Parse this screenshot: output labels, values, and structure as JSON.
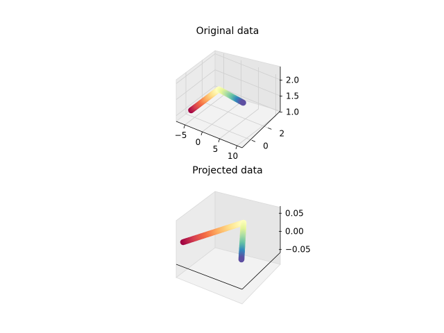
{
  "chart_data": [
    {
      "type": "scatter",
      "projection": "3d",
      "title": "Original data",
      "xlabel": "",
      "ylabel": "",
      "zlabel": "",
      "xlim": [
        -7.5,
        11.5
      ],
      "ylim": [
        -1.2,
        3.6
      ],
      "zlim": [
        0.82,
        2.12
      ],
      "xticks": [
        -5,
        0,
        5,
        10
      ],
      "yticks": [
        0,
        2
      ],
      "zticks": [
        1.0,
        1.5,
        2.0
      ],
      "xtick_labels": [
        "−5",
        "0",
        "5",
        "10"
      ],
      "ytick_labels": [
        "0",
        "2"
      ],
      "ztick_labels": [
        "1.0",
        "1.5",
        "2.0"
      ],
      "grid": true,
      "colormap": "Spectral",
      "colormap_stops": [
        "#9e0142",
        "#d53e4f",
        "#f46d43",
        "#fdae61",
        "#fee08b",
        "#ffffbf",
        "#e6f598",
        "#abdda4",
        "#66c2a5",
        "#3288bd",
        "#5e4fa2"
      ],
      "segments": [
        {
          "from": [
            -6,
            0,
            1
          ],
          "to": [
            2,
            0,
            2
          ]
        },
        {
          "from": [
            2,
            0,
            2
          ],
          "to": [
            2,
            3,
            1
          ]
        }
      ],
      "points_per_segment": 40
    },
    {
      "type": "scatter",
      "projection": "3d",
      "title": "Projected data",
      "xlabel": "",
      "ylabel": "",
      "zlabel": "",
      "zlim": [
        -0.064,
        0.064
      ],
      "zticks": [
        0.05,
        0.0,
        -0.05
      ],
      "ztick_labels": [
        "0.05",
        "0.00",
        "−0.05"
      ],
      "grid": false,
      "colormap": "Spectral",
      "segments": [
        {
          "from": [
            -6,
            0,
            0
          ],
          "to": [
            3,
            0,
            0
          ]
        },
        {
          "from": [
            3,
            0,
            0
          ],
          "to": [
            3,
            0,
            -0.064
          ]
        }
      ],
      "points_per_segment": 40
    }
  ]
}
